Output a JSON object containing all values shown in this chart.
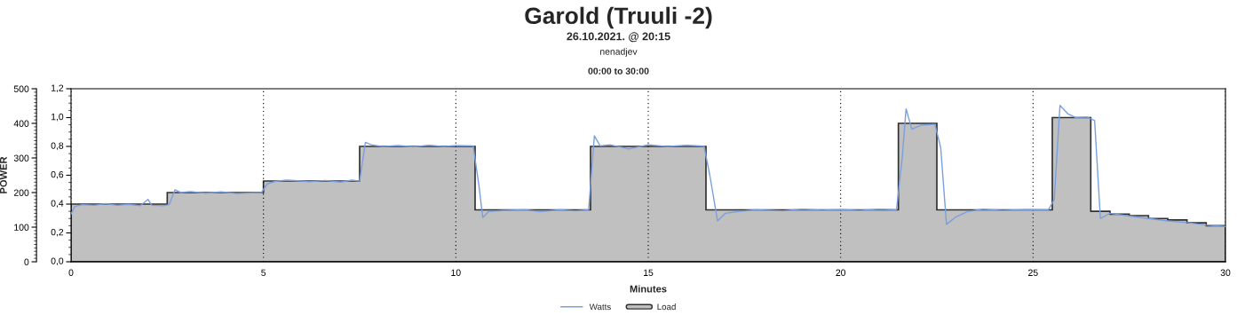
{
  "chart_data": {
    "type": "line",
    "title": "Garold (Truuli -2)",
    "subtitle": "26.10.2021. @ 20:15",
    "annotations": [
      "nenadjev",
      "00:00 to 30:00"
    ],
    "xlabel": "Minutes",
    "ylabel": "POWER",
    "xlim": [
      0,
      30
    ],
    "xticks": [
      0,
      5,
      10,
      15,
      20,
      25,
      30
    ],
    "ylim": [
      0,
      500
    ],
    "yticks": [
      0,
      100,
      200,
      300,
      400,
      500
    ],
    "y2lim": [
      0,
      1.2
    ],
    "y2ticks": [
      {
        "value": 0,
        "label": "0,0"
      },
      {
        "value": 0.2,
        "label": "0,2"
      },
      {
        "value": 0.4,
        "label": "0,4"
      },
      {
        "value": 0.6,
        "label": "0,6"
      },
      {
        "value": 0.8,
        "label": "0,8"
      },
      {
        "value": 1.0,
        "label": "1,0"
      },
      {
        "value": 1.2,
        "label": "1,2"
      }
    ],
    "grid": "x",
    "legend": "bottom",
    "series": [
      {
        "name": "Load",
        "type": "area",
        "axis": "y2",
        "color": "#c0c0c0",
        "x": [
          0,
          2.5,
          5,
          7.5,
          10.5,
          13.5,
          16.5,
          21.5,
          22.5,
          25.5,
          26.5,
          27,
          27.5,
          28,
          28.5,
          29,
          29.5,
          30
        ],
        "values": [
          0.4,
          0.48,
          0.56,
          0.8,
          0.36,
          0.8,
          0.36,
          0.96,
          0.36,
          1.0,
          0.35,
          0.33,
          0.32,
          0.3,
          0.29,
          0.27,
          0.25,
          0.23
        ]
      },
      {
        "name": "Watts",
        "color": "#7a9fe0",
        "x": [
          0,
          0.1,
          0.3,
          0.6,
          0.9,
          1.2,
          1.5,
          1.8,
          2.0,
          2.1,
          2.4,
          2.55,
          2.7,
          2.85,
          3.1,
          3.5,
          3.9,
          4.3,
          4.7,
          4.95,
          5.1,
          5.3,
          5.6,
          5.9,
          6.2,
          6.6,
          7.0,
          7.3,
          7.5,
          7.65,
          7.8,
          8.1,
          8.5,
          8.9,
          9.3,
          9.7,
          10.0,
          10.45,
          10.6,
          10.7,
          10.85,
          11.2,
          11.8,
          12.2,
          12.7,
          13.1,
          13.45,
          13.6,
          13.75,
          14.0,
          14.5,
          15.0,
          15.5,
          16.0,
          16.45,
          16.6,
          16.8,
          17.0,
          17.3,
          17.8,
          18.5,
          19.0,
          19.5,
          20.0,
          20.5,
          21.0,
          21.45,
          21.6,
          21.7,
          21.85,
          22.1,
          22.45,
          22.6,
          22.75,
          23.0,
          23.3,
          23.7,
          24.2,
          24.8,
          25.4,
          25.55,
          25.7,
          25.9,
          26.1,
          26.4,
          26.6,
          26.75,
          27.0,
          27.5,
          28.0,
          28.5,
          29.0,
          29.5,
          30.0
        ],
        "values": [
          138,
          160,
          165,
          163,
          168,
          163,
          166,
          162,
          180,
          163,
          162,
          165,
          208,
          200,
          203,
          198,
          202,
          197,
          199,
          200,
          225,
          232,
          236,
          234,
          231,
          235,
          230,
          236,
          233,
          345,
          338,
          333,
          336,
          332,
          337,
          333,
          336,
          335,
          220,
          128,
          145,
          148,
          150,
          145,
          150,
          147,
          150,
          364,
          335,
          338,
          326,
          338,
          333,
          337,
          334,
          250,
          118,
          140,
          145,
          150,
          147,
          152,
          149,
          151,
          148,
          152,
          150,
          300,
          442,
          383,
          395,
          397,
          330,
          108,
          130,
          145,
          152,
          148,
          151,
          150,
          180,
          452,
          428,
          417,
          418,
          408,
          125,
          140,
          132,
          125,
          118,
          113,
          106,
          102
        ]
      }
    ]
  }
}
